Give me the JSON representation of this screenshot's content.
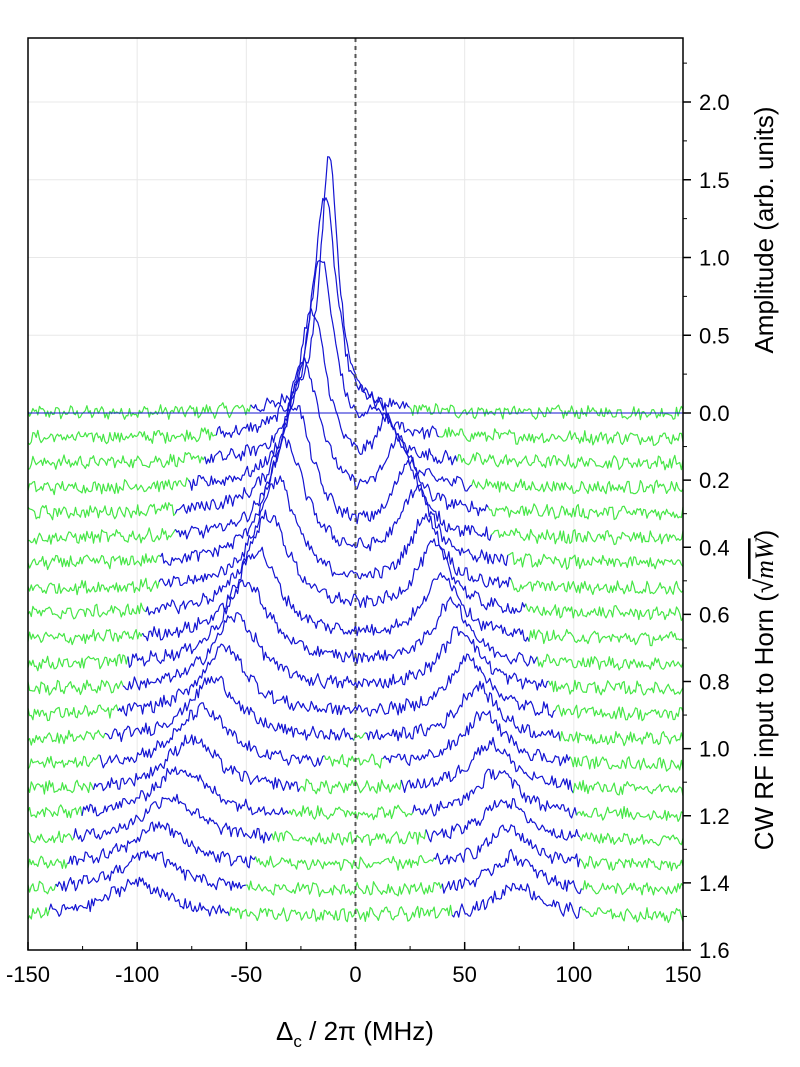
{
  "chart_data": {
    "type": "line",
    "title": "",
    "xlabel": "Δc / 2π (MHz)",
    "xlabel_main": "Δ",
    "xlabel_sub": "c",
    "xlabel_rest": " / 2π (MHz)",
    "ylabel_upper": "Amplitude (arb. units)",
    "ylabel_lower_prefix": "CW RF input to Horn (",
    "ylabel_lower_sqrt": "mW",
    "ylabel_lower_suffix": ")",
    "xlim": [
      -150,
      150
    ],
    "x_ticks": [
      "-150",
      "-100",
      "-50",
      "0",
      "50",
      "100",
      "150"
    ],
    "amplitude_ticks": [
      "0.0",
      "0.5",
      "1.0",
      "1.5",
      "2.0"
    ],
    "rf_ticks": [
      "0.2",
      "0.4",
      "0.6",
      "0.8",
      "1.0",
      "1.2",
      "1.4",
      "1.6"
    ],
    "amplitude_range": [
      0,
      2.4
    ],
    "rf_range": [
      0,
      1.6
    ],
    "reference_line_x": 0,
    "grid": true,
    "colors": {
      "signal": "#1414d2",
      "noise": "#46e646",
      "dashed_line": "#555555",
      "grid": "#e8e8e8"
    },
    "series": [
      {
        "rf_input": 0.0,
        "peaks": [
          {
            "center": -12,
            "width": 5,
            "height": 1.65
          }
        ]
      },
      {
        "rf_input": 0.075,
        "peaks": [
          {
            "center": -14,
            "width": 7,
            "height": 1.55
          },
          {
            "center": 6,
            "width": 5,
            "height": 0.1
          }
        ]
      },
      {
        "rf_input": 0.15,
        "peaks": [
          {
            "center": -16,
            "width": 8,
            "height": 1.3
          },
          {
            "center": 11,
            "width": 6,
            "height": 0.3
          }
        ]
      },
      {
        "rf_input": 0.225,
        "peaks": [
          {
            "center": -20,
            "width": 9,
            "height": 1.12
          },
          {
            "center": 15,
            "width": 7,
            "height": 0.4
          }
        ]
      },
      {
        "rf_input": 0.3,
        "peaks": [
          {
            "center": -24,
            "width": 10,
            "height": 0.98
          },
          {
            "center": 20,
            "width": 8,
            "height": 0.44
          }
        ]
      },
      {
        "rf_input": 0.375,
        "peaks": [
          {
            "center": -28,
            "width": 10,
            "height": 0.86
          },
          {
            "center": 24,
            "width": 8,
            "height": 0.46
          }
        ]
      },
      {
        "rf_input": 0.45,
        "peaks": [
          {
            "center": -32,
            "width": 11,
            "height": 0.77
          },
          {
            "center": 28,
            "width": 9,
            "height": 0.46
          }
        ]
      },
      {
        "rf_input": 0.525,
        "peaks": [
          {
            "center": -36,
            "width": 11,
            "height": 0.7
          },
          {
            "center": 32,
            "width": 9,
            "height": 0.45
          }
        ]
      },
      {
        "rf_input": 0.6,
        "peaks": [
          {
            "center": -40,
            "width": 12,
            "height": 0.63
          },
          {
            "center": 36,
            "width": 10,
            "height": 0.43
          }
        ]
      },
      {
        "rf_input": 0.675,
        "peaks": [
          {
            "center": -45,
            "width": 12,
            "height": 0.57
          },
          {
            "center": 40,
            "width": 10,
            "height": 0.41
          }
        ]
      },
      {
        "rf_input": 0.75,
        "peaks": [
          {
            "center": -50,
            "width": 13,
            "height": 0.52
          },
          {
            "center": 44,
            "width": 10,
            "height": 0.4
          }
        ]
      },
      {
        "rf_input": 0.825,
        "peaks": [
          {
            "center": -55,
            "width": 13,
            "height": 0.47
          },
          {
            "center": 48,
            "width": 11,
            "height": 0.38
          }
        ]
      },
      {
        "rf_input": 0.9,
        "peaks": [
          {
            "center": -60,
            "width": 13,
            "height": 0.43
          },
          {
            "center": 52,
            "width": 11,
            "height": 0.36
          }
        ]
      },
      {
        "rf_input": 0.975,
        "peaks": [
          {
            "center": -65,
            "width": 14,
            "height": 0.39
          },
          {
            "center": 56,
            "width": 11,
            "height": 0.34
          }
        ]
      },
      {
        "rf_input": 1.05,
        "peaks": [
          {
            "center": -70,
            "width": 14,
            "height": 0.36
          },
          {
            "center": 59,
            "width": 12,
            "height": 0.32
          }
        ]
      },
      {
        "rf_input": 1.125,
        "peaks": [
          {
            "center": -75,
            "width": 14,
            "height": 0.33
          },
          {
            "center": 62,
            "width": 12,
            "height": 0.3
          }
        ]
      },
      {
        "rf_input": 1.2,
        "peaks": [
          {
            "center": -80,
            "width": 15,
            "height": 0.3
          },
          {
            "center": 65,
            "width": 12,
            "height": 0.28
          }
        ]
      },
      {
        "rf_input": 1.275,
        "peaks": [
          {
            "center": -85,
            "width": 15,
            "height": 0.28
          },
          {
            "center": 68,
            "width": 12,
            "height": 0.26
          }
        ]
      },
      {
        "rf_input": 1.35,
        "peaks": [
          {
            "center": -90,
            "width": 15,
            "height": 0.26
          },
          {
            "center": 70,
            "width": 12,
            "height": 0.24
          }
        ]
      },
      {
        "rf_input": 1.425,
        "peaks": [
          {
            "center": -95,
            "width": 16,
            "height": 0.24
          },
          {
            "center": 72,
            "width": 12,
            "height": 0.22
          }
        ]
      },
      {
        "rf_input": 1.5,
        "peaks": [
          {
            "center": -100,
            "width": 16,
            "height": 0.22
          },
          {
            "center": 74,
            "width": 12,
            "height": 0.2
          }
        ]
      }
    ]
  }
}
